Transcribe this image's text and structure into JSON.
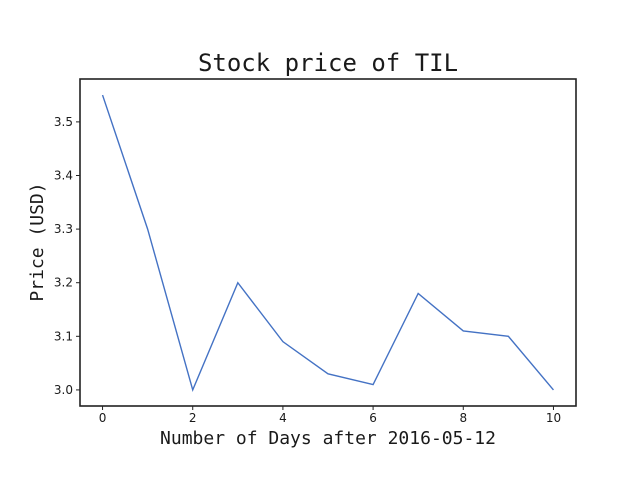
{
  "chart_data": {
    "type": "line",
    "title": "Stock price of TIL",
    "xlabel": "Number of Days after 2016-05-12",
    "ylabel": "Price (USD)",
    "x": [
      0,
      1,
      2,
      3,
      4,
      5,
      6,
      7,
      8,
      9,
      10
    ],
    "series": [
      {
        "values": [
          3.55,
          3.3,
          3.0,
          3.2,
          3.09,
          3.03,
          3.01,
          3.18,
          3.11,
          3.1,
          3.0
        ]
      }
    ],
    "xlim": [
      -0.5,
      10.5
    ],
    "ylim": [
      2.97,
      3.58
    ],
    "xticks": [
      0,
      2,
      4,
      6,
      8,
      10
    ],
    "xtick_labels": [
      "0",
      "2",
      "4",
      "6",
      "8",
      "10"
    ],
    "yticks": [
      3.0,
      3.1,
      3.2,
      3.3,
      3.4,
      3.5
    ],
    "ytick_labels": [
      "3.0",
      "3.1",
      "3.2",
      "3.3",
      "3.4",
      "3.5"
    ],
    "grid": false,
    "line_color": "#4472c4"
  }
}
